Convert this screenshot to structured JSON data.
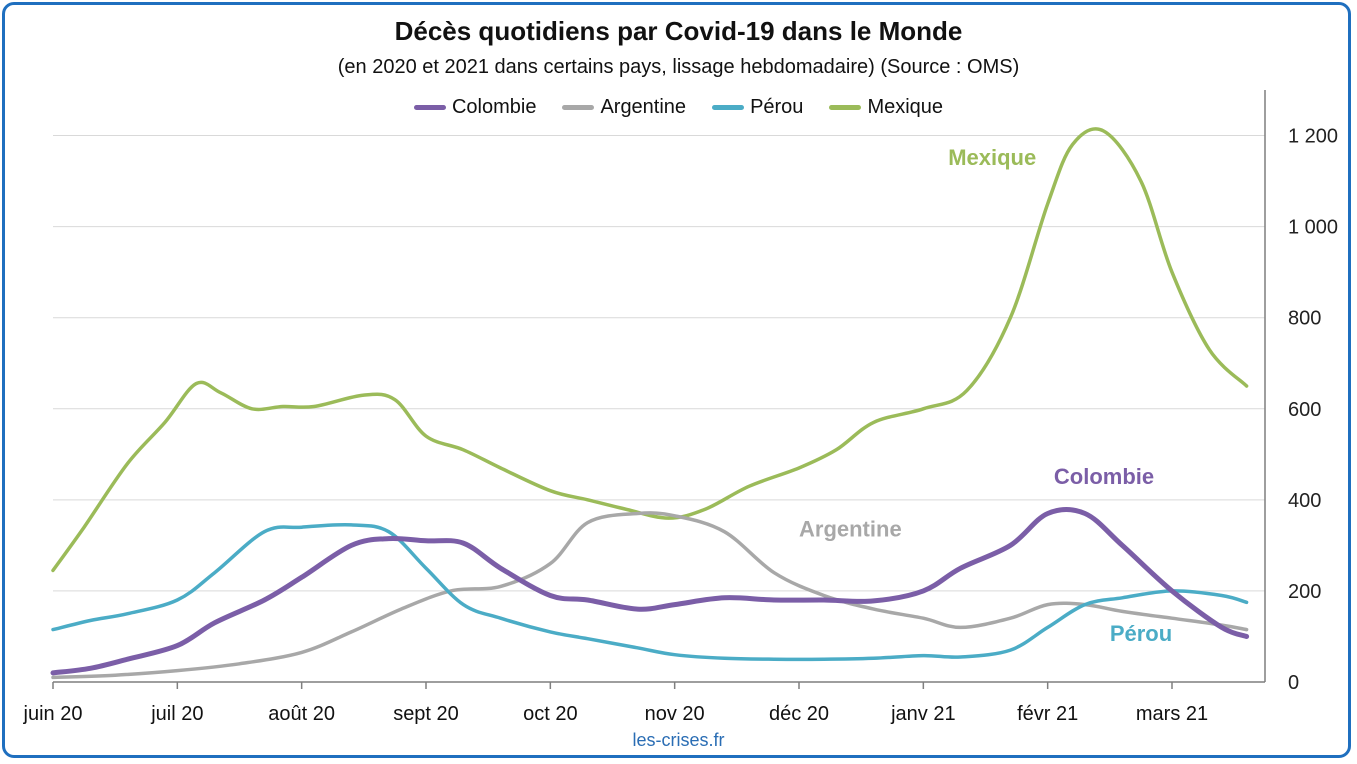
{
  "chart_data": {
    "type": "line",
    "title": "Décès quotidiens par Covid-19 dans le Monde",
    "subtitle": "(en 2020 et 2021 dans certains pays, lissage hebdomadaire) (Source : OMS)",
    "source": "les-crises.fr",
    "x_tick_labels": [
      "juin 20",
      "juil 20",
      "août 20",
      "sept 20",
      "oct 20",
      "nov 20",
      "déc 20",
      "janv 21",
      "févr 21",
      "mars 21"
    ],
    "x_tick_months": [
      0,
      1,
      2,
      3,
      4,
      5,
      6,
      7,
      8,
      9
    ],
    "x_range_months": [
      0,
      9.6
    ],
    "ylim": [
      0,
      1300
    ],
    "y_ticks": [
      0,
      200,
      400,
      600,
      800,
      1000,
      1200
    ],
    "y_tick_labels": [
      "0",
      "200",
      "400",
      "600",
      "800",
      "1 000",
      "1 200"
    ],
    "y_axis_side": "right",
    "grid": true,
    "legend_position": "top",
    "series": [
      {
        "name": "Colombie",
        "color": "#7b5ea7",
        "label": "Colombie",
        "x": [
          0,
          0.3,
          0.6,
          1.0,
          1.3,
          1.7,
          2.0,
          2.4,
          2.7,
          3.0,
          3.3,
          3.6,
          4.0,
          4.3,
          4.7,
          5.0,
          5.4,
          5.8,
          6.2,
          6.6,
          7.0,
          7.3,
          7.7,
          8.0,
          8.3,
          8.6,
          9.0,
          9.4,
          9.6
        ],
        "y": [
          20,
          30,
          50,
          80,
          130,
          180,
          230,
          300,
          315,
          310,
          305,
          250,
          190,
          180,
          160,
          170,
          185,
          180,
          180,
          178,
          200,
          250,
          300,
          370,
          370,
          300,
          200,
          120,
          100
        ]
      },
      {
        "name": "Argentine",
        "color": "#a8a8a8",
        "label": "Argentine",
        "x": [
          0,
          0.5,
          1.0,
          1.5,
          2.0,
          2.4,
          2.8,
          3.2,
          3.6,
          4.0,
          4.3,
          4.7,
          5.0,
          5.4,
          5.8,
          6.2,
          6.6,
          7.0,
          7.3,
          7.7,
          8.0,
          8.3,
          8.6,
          9.0,
          9.4,
          9.6
        ],
        "y": [
          10,
          15,
          25,
          40,
          65,
          110,
          160,
          200,
          210,
          260,
          350,
          370,
          365,
          330,
          240,
          190,
          160,
          140,
          120,
          140,
          170,
          170,
          155,
          140,
          125,
          115
        ]
      },
      {
        "name": "Pérou",
        "color": "#4bacc6",
        "label": "Pérou",
        "x": [
          0,
          0.3,
          0.6,
          1.0,
          1.3,
          1.7,
          2.0,
          2.4,
          2.7,
          3.0,
          3.3,
          3.6,
          4.0,
          4.3,
          4.7,
          5.0,
          5.4,
          5.8,
          6.2,
          6.6,
          7.0,
          7.3,
          7.7,
          8.0,
          8.3,
          8.6,
          9.0,
          9.4,
          9.6
        ],
        "y": [
          115,
          135,
          150,
          180,
          240,
          330,
          340,
          345,
          330,
          250,
          170,
          140,
          110,
          95,
          75,
          60,
          52,
          50,
          50,
          52,
          58,
          55,
          70,
          120,
          170,
          185,
          200,
          190,
          175
        ]
      },
      {
        "name": "Mexique",
        "color": "#9bbb59",
        "label": "Mexique",
        "x": [
          0,
          0.25,
          0.6,
          0.9,
          1.15,
          1.35,
          1.6,
          1.85,
          2.1,
          2.5,
          2.75,
          3.0,
          3.3,
          3.6,
          4.0,
          4.3,
          4.6,
          4.95,
          5.25,
          5.6,
          6.0,
          6.3,
          6.6,
          7.0,
          7.35,
          7.7,
          8.0,
          8.2,
          8.45,
          8.75,
          9.0,
          9.3,
          9.6
        ],
        "y": [
          245,
          340,
          480,
          570,
          655,
          635,
          600,
          605,
          605,
          630,
          620,
          540,
          510,
          470,
          420,
          400,
          380,
          360,
          380,
          430,
          470,
          510,
          570,
          600,
          640,
          800,
          1050,
          1180,
          1210,
          1100,
          900,
          730,
          650
        ]
      }
    ]
  }
}
